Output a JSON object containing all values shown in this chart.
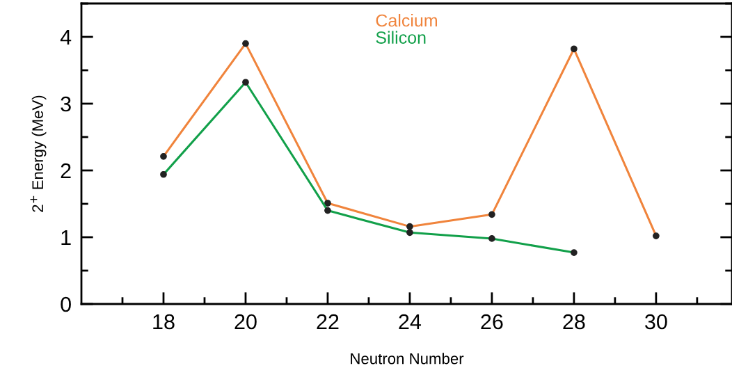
{
  "chart_data": {
    "type": "line",
    "xlabel": "Neutron Number",
    "ylabel": "2$^{+}$ Energy (MeV)",
    "xlim": [
      16,
      31.85
    ],
    "xticks": [
      18,
      20,
      22,
      24,
      26,
      28,
      30
    ],
    "ylim": [
      0,
      4.5
    ],
    "yticks": [
      0,
      1,
      2,
      3,
      4
    ],
    "x": [
      18,
      20,
      22,
      24,
      26,
      28,
      30
    ],
    "series": [
      {
        "name": "Calcium",
        "color": "#f0843c",
        "values": [
          2.21,
          3.9,
          1.51,
          1.16,
          1.34,
          3.82,
          1.02
        ]
      },
      {
        "name": "Silicon",
        "color": "#12a04a",
        "values": [
          1.94,
          3.32,
          1.4,
          1.07,
          0.98,
          0.77,
          null
        ]
      }
    ],
    "marker": "circle",
    "legend": "top",
    "grid": false
  }
}
